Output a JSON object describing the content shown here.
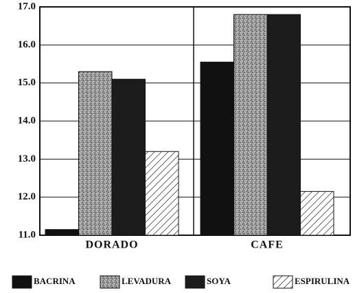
{
  "chart_data": {
    "type": "bar",
    "categories": [
      "DORADO",
      "CAFE"
    ],
    "series": [
      {
        "name": "BACRINA",
        "color": "#111111",
        "pattern": "solid",
        "values": [
          11.15,
          15.55
        ]
      },
      {
        "name": "LEVADURA",
        "color": "#9a9a9a",
        "pattern": "speckle",
        "values": [
          15.3,
          16.8
        ]
      },
      {
        "name": "SOYA",
        "color": "#1c1c1c",
        "pattern": "solid",
        "values": [
          15.1,
          16.8
        ]
      },
      {
        "name": "ESPIRULINA",
        "color": "#ffffff",
        "pattern": "hatch",
        "values": [
          13.2,
          12.15
        ]
      }
    ],
    "ylim": [
      11,
      17
    ],
    "yticks": [
      {
        "value": 11,
        "label": "11.0"
      },
      {
        "value": 12,
        "label": "12.0"
      },
      {
        "value": 13,
        "label": "13.0"
      },
      {
        "value": 14,
        "label": "14.0"
      },
      {
        "value": 15,
        "label": "15.0"
      },
      {
        "value": 16,
        "label": "16.0"
      },
      {
        "value": 17,
        "label": "17.0"
      }
    ],
    "grid": true,
    "legend": "bottom"
  }
}
